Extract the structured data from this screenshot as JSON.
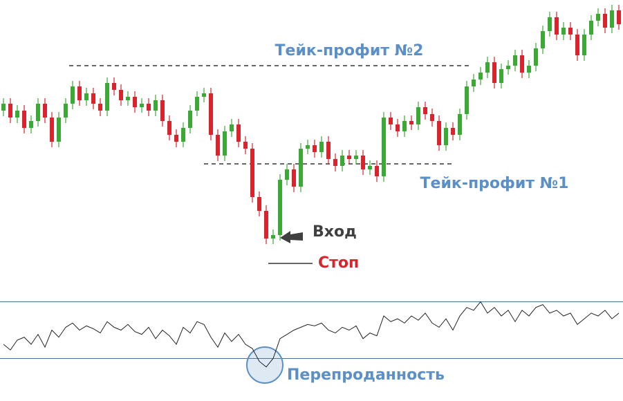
{
  "chart_data": [
    {
      "type": "candlestick",
      "open": [
        260,
        270,
        250,
        260,
        235,
        245,
        270,
        250,
        215,
        250,
        270,
        295,
        275,
        285,
        270,
        260,
        300,
        290,
        275,
        280,
        265,
        270,
        260,
        275,
        245,
        225,
        215,
        235,
        260,
        280,
        285,
        225,
        195,
        230,
        240,
        215,
        205,
        135,
        115,
        75,
        80,
        160,
        175,
        150,
        205,
        210,
        200,
        215,
        190,
        180,
        195,
        190,
        195,
        175,
        180,
        165,
        250,
        240,
        230,
        245,
        240,
        265,
        255,
        245,
        210,
        235,
        225,
        255,
        295,
        305,
        315,
        330,
        300,
        320,
        325,
        340,
        315,
        325,
        350,
        375,
        395,
        370,
        380,
        370,
        340,
        370,
        390,
        400,
        380,
        405
      ],
      "high": [
        278,
        278,
        268,
        268,
        253,
        278,
        278,
        258,
        258,
        278,
        303,
        303,
        293,
        293,
        278,
        308,
        308,
        298,
        288,
        288,
        278,
        278,
        283,
        283,
        253,
        233,
        243,
        268,
        288,
        293,
        293,
        233,
        238,
        248,
        248,
        223,
        213,
        143,
        123,
        88,
        168,
        183,
        183,
        213,
        218,
        218,
        223,
        223,
        198,
        203,
        203,
        203,
        203,
        188,
        188,
        258,
        258,
        248,
        253,
        253,
        273,
        273,
        263,
        253,
        243,
        243,
        263,
        303,
        313,
        323,
        338,
        338,
        328,
        333,
        348,
        348,
        333,
        358,
        383,
        403,
        403,
        388,
        388,
        378,
        378,
        398,
        408,
        408,
        413,
        413
      ],
      "low": [
        252,
        242,
        242,
        227,
        227,
        237,
        242,
        207,
        207,
        242,
        262,
        267,
        267,
        262,
        252,
        252,
        282,
        267,
        267,
        257,
        257,
        252,
        252,
        237,
        217,
        207,
        207,
        227,
        252,
        272,
        217,
        187,
        187,
        222,
        207,
        197,
        127,
        107,
        67,
        67,
        72,
        152,
        142,
        142,
        197,
        192,
        192,
        182,
        172,
        172,
        182,
        182,
        167,
        167,
        157,
        157,
        232,
        222,
        222,
        232,
        232,
        247,
        237,
        202,
        202,
        217,
        217,
        247,
        287,
        297,
        307,
        292,
        292,
        312,
        317,
        307,
        307,
        317,
        342,
        367,
        362,
        362,
        362,
        332,
        332,
        362,
        382,
        372,
        372,
        377
      ],
      "close": [
        270,
        250,
        260,
        235,
        245,
        270,
        250,
        215,
        250,
        270,
        295,
        275,
        285,
        270,
        260,
        300,
        290,
        275,
        280,
        265,
        270,
        260,
        275,
        245,
        225,
        215,
        235,
        260,
        280,
        285,
        225,
        195,
        230,
        240,
        215,
        205,
        135,
        115,
        75,
        80,
        160,
        175,
        150,
        205,
        210,
        200,
        215,
        190,
        180,
        195,
        190,
        195,
        175,
        180,
        165,
        250,
        240,
        230,
        245,
        240,
        265,
        255,
        245,
        210,
        235,
        225,
        255,
        295,
        305,
        315,
        330,
        300,
        320,
        325,
        340,
        315,
        325,
        350,
        375,
        395,
        370,
        380,
        370,
        340,
        370,
        390,
        400,
        380,
        405,
        385
      ],
      "up_color": "#3aaa35",
      "down_color": "#d9232d",
      "ylim": [
        0,
        420
      ],
      "levels": [
        {
          "label": "Тейк-профит №2",
          "value": 325,
          "color": "#5b8fc7"
        },
        {
          "label": "Тейк-профит №1",
          "value": 183,
          "color": "#5b8fc7"
        },
        {
          "label": "Стоп",
          "value": 39,
          "color": "#d9232d"
        }
      ],
      "annotations": [
        "Вход"
      ]
    },
    {
      "type": "line",
      "values": [
        40,
        36,
        43,
        45,
        40,
        47,
        38,
        50,
        45,
        52,
        55,
        50,
        53,
        51,
        48,
        56,
        52,
        50,
        54,
        49,
        47,
        52,
        44,
        50,
        46,
        40,
        52,
        48,
        56,
        54,
        45,
        38,
        48,
        42,
        47,
        40,
        37,
        28,
        24,
        30,
        44,
        47,
        50,
        52,
        54,
        53,
        55,
        50,
        48,
        52,
        50,
        53,
        44,
        48,
        46,
        60,
        56,
        58,
        55,
        60,
        57,
        62,
        55,
        52,
        58,
        50,
        60,
        66,
        64,
        70,
        62,
        66,
        60,
        64,
        56,
        64,
        60,
        66,
        68,
        62,
        64,
        60,
        62,
        54,
        58,
        62,
        60,
        64,
        58,
        62
      ],
      "color": "#222222",
      "ylim": [
        0,
        100
      ],
      "levels": [
        70,
        30
      ],
      "level_color": "#4a6f8a",
      "annotations": [
        "Перепроданность"
      ]
    }
  ]
}
